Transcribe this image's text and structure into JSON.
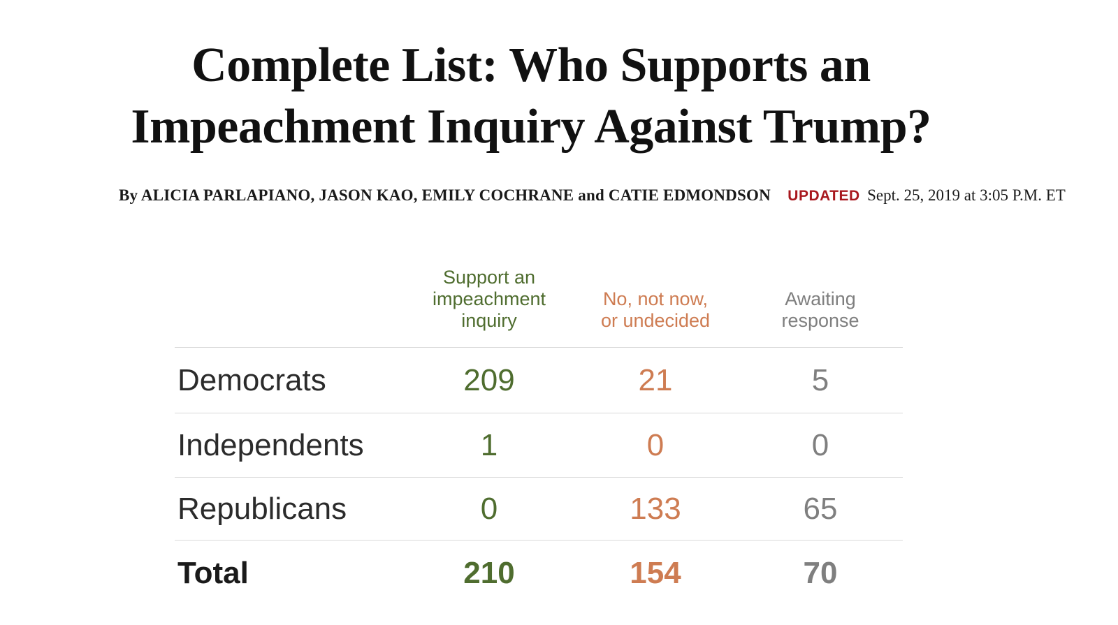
{
  "headline": {
    "line1": "Complete List: Who Supports an",
    "line2": "Impeachment Inquiry Against Trump?"
  },
  "byline": {
    "authors": "By ALICIA PARLAPIANO, JASON KAO, EMILY COCHRANE and CATIE EDMONDSON",
    "updated_label": "UPDATED",
    "updated_time": "Sept. 25, 2019 at 3:05 P.M. ET"
  },
  "colors": {
    "support_green": "#4f6d2f",
    "no_orange": "#ce7c52",
    "awaiting_gray": "#7f7f7f",
    "updated_red": "#a8181e",
    "rule_gray": "#d9d9d9"
  },
  "chart_data": {
    "type": "table",
    "columns": [
      "Support an\nimpeachment\ninquiry",
      "No, not now,\nor undecided",
      "Awaiting\nresponse"
    ],
    "rows": [
      {
        "label": "Democrats",
        "support": "209",
        "no": "21",
        "awaiting": "5"
      },
      {
        "label": "Independents",
        "support": "1",
        "no": "0",
        "awaiting": "0"
      },
      {
        "label": "Republicans",
        "support": "0",
        "no": "133",
        "awaiting": "65"
      },
      {
        "label": "Total",
        "support": "210",
        "no": "154",
        "awaiting": "70"
      }
    ]
  }
}
